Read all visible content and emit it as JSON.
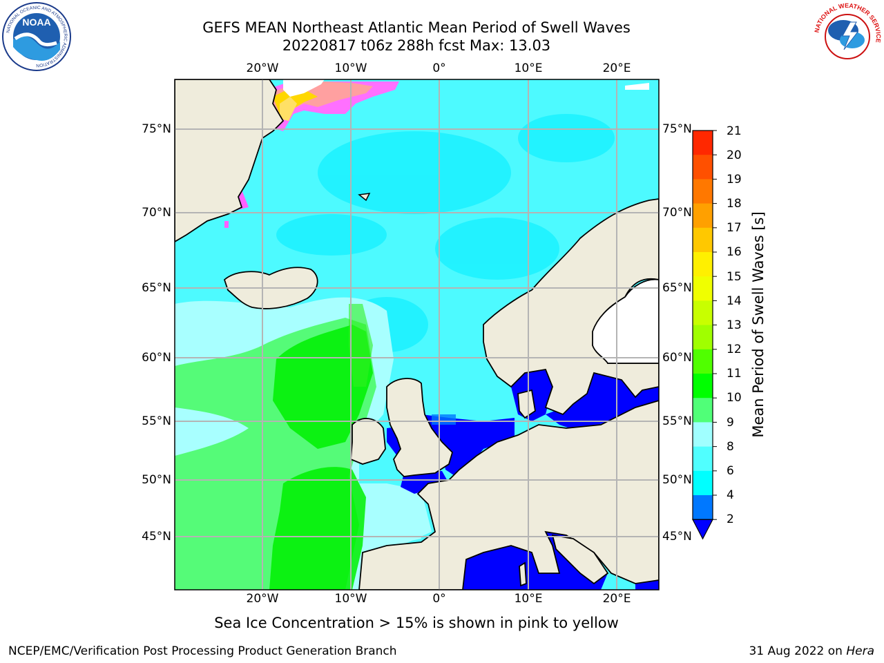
{
  "header": {
    "title_line1": "GEFS MEAN Northeast Atlantic Mean Period of Swell Waves",
    "title_line2": "20220817 t06z 288h fcst   Max: 13.03"
  },
  "map": {
    "top_lon_labels": [
      "20°W",
      "10°W",
      "0°",
      "10°E",
      "20°E"
    ],
    "bottom_lon_labels": [
      "20°W",
      "10°W",
      "0°",
      "10°E",
      "20°E"
    ],
    "left_lat_labels": [
      "75°N",
      "70°N",
      "65°N",
      "60°N",
      "55°N",
      "50°N",
      "45°N"
    ],
    "right_lat_labels": [
      "75°N",
      "70°N",
      "65°N",
      "60°N",
      "55°N",
      "50°N",
      "45°N"
    ],
    "land_color": "#efecdc",
    "grid_color": "#b4b4b4"
  },
  "colorbar": {
    "label": "Mean Period of Swell Waves [s]",
    "ticks": [
      "21",
      "20",
      "19",
      "18",
      "17",
      "16",
      "15",
      "14",
      "13",
      "12",
      "11",
      "10",
      "9",
      "8",
      "6",
      "4",
      "2"
    ],
    "colors": [
      "#ff0000",
      "#ff2800",
      "#ff5000",
      "#ff7800",
      "#ffa000",
      "#ffc800",
      "#fff000",
      "#f0ff00",
      "#c8ff00",
      "#a0ff00",
      "#50ff00",
      "#00ff00",
      "#50ff78",
      "#a0ffff",
      "#50ffff",
      "#00ffff",
      "#0078ff"
    ],
    "under_color": "#0000ff"
  },
  "caption": "Sea Ice Concentration > 15% is shown in pink to yellow",
  "footer": {
    "left": "NCEP/EMC/Verification Post Processing Product Generation Branch",
    "date": "31 Aug 2022 on ",
    "machine": "Hera"
  },
  "logos": {
    "noaa": {
      "text": "NOAA",
      "ring_text": "NATIONAL OCEANIC AND ATMOSPHERIC ADMINISTRATION"
    },
    "nws": {
      "ring_text": "NATIONAL WEATHER SERVICE"
    }
  }
}
